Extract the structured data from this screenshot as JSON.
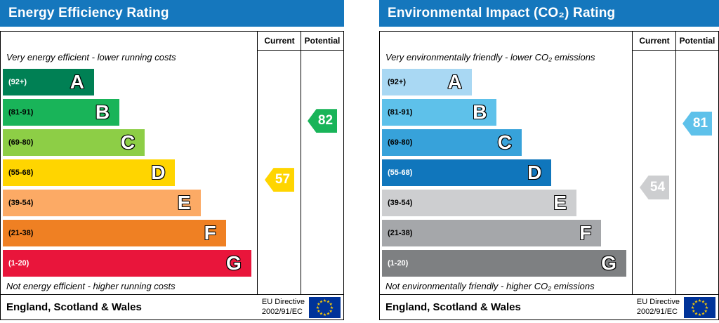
{
  "charts": [
    {
      "title": "Energy Efficiency Rating",
      "columns": {
        "current": "Current",
        "potential": "Potential"
      },
      "top_note": "Very energy efficient - lower running costs",
      "bottom_note": "Not energy efficient - higher running costs",
      "bands": [
        {
          "letter": "A",
          "range": "(92+)",
          "lo": 92,
          "hi": 100,
          "color": "#008054",
          "range_color": "#ffffff",
          "width_pct": 36
        },
        {
          "letter": "B",
          "range": "(81-91)",
          "lo": 81,
          "hi": 91,
          "color": "#19b459",
          "range_color": "#000000",
          "width_pct": 46
        },
        {
          "letter": "C",
          "range": "(69-80)",
          "lo": 69,
          "hi": 80,
          "color": "#8dce46",
          "range_color": "#000000",
          "width_pct": 56
        },
        {
          "letter": "D",
          "range": "(55-68)",
          "lo": 55,
          "hi": 68,
          "color": "#ffd500",
          "range_color": "#000000",
          "width_pct": 68
        },
        {
          "letter": "E",
          "range": "(39-54)",
          "lo": 39,
          "hi": 54,
          "color": "#fcaa65",
          "range_color": "#000000",
          "width_pct": 78
        },
        {
          "letter": "F",
          "range": "(21-38)",
          "lo": 21,
          "hi": 38,
          "color": "#ef8023",
          "range_color": "#000000",
          "width_pct": 88
        },
        {
          "letter": "G",
          "range": "(1-20)",
          "lo": 1,
          "hi": 20,
          "color": "#e9153b",
          "range_color": "#ffffff",
          "width_pct": 98
        }
      ],
      "current": {
        "value": 57,
        "color": "#ffd500"
      },
      "potential": {
        "value": 82,
        "color": "#19b459"
      },
      "footer": {
        "region": "England, Scotland & Wales",
        "directive_line1": "EU Directive",
        "directive_line2": "2002/91/EC",
        "flag_icon": "eu-flag"
      }
    },
    {
      "title": "Environmental Impact (CO₂) Rating",
      "columns": {
        "current": "Current",
        "potential": "Potential"
      },
      "top_note": "Very environmentally friendly - lower CO₂ emissions",
      "bottom_note": "Not environmentally friendly - higher CO₂ emissions",
      "bands": [
        {
          "letter": "A",
          "range": "(92+)",
          "lo": 92,
          "hi": 100,
          "color": "#a9d8f3",
          "range_color": "#000000",
          "width_pct": 36
        },
        {
          "letter": "B",
          "range": "(81-91)",
          "lo": 81,
          "hi": 91,
          "color": "#5ec1ea",
          "range_color": "#000000",
          "width_pct": 46
        },
        {
          "letter": "C",
          "range": "(69-80)",
          "lo": 69,
          "hi": 80,
          "color": "#37a2da",
          "range_color": "#000000",
          "width_pct": 56
        },
        {
          "letter": "D",
          "range": "(55-68)",
          "lo": 55,
          "hi": 68,
          "color": "#1076bc",
          "range_color": "#ffffff",
          "width_pct": 68
        },
        {
          "letter": "E",
          "range": "(39-54)",
          "lo": 39,
          "hi": 54,
          "color": "#cdced0",
          "range_color": "#000000",
          "width_pct": 78
        },
        {
          "letter": "F",
          "range": "(21-38)",
          "lo": 21,
          "hi": 38,
          "color": "#a5a7aa",
          "range_color": "#000000",
          "width_pct": 88
        },
        {
          "letter": "G",
          "range": "(1-20)",
          "lo": 1,
          "hi": 20,
          "color": "#7e8082",
          "range_color": "#ffffff",
          "width_pct": 98
        }
      ],
      "current": {
        "value": 54,
        "color": "#cdced0"
      },
      "potential": {
        "value": 81,
        "color": "#5ec1ea"
      },
      "footer": {
        "region": "England, Scotland & Wales",
        "directive_line1": "EU Directive",
        "directive_line2": "2002/91/EC",
        "flag_icon": "eu-flag"
      }
    }
  ],
  "chart_data": [
    {
      "type": "bar",
      "title": "Energy Efficiency Rating",
      "categories": [
        "A (92+)",
        "B (81-91)",
        "C (69-80)",
        "D (55-68)",
        "E (39-54)",
        "F (21-38)",
        "G (1-20)"
      ],
      "series": [
        {
          "name": "Current",
          "values": [
            57
          ],
          "band": "D"
        },
        {
          "name": "Potential",
          "values": [
            82
          ],
          "band": "B"
        }
      ],
      "scale": [
        1,
        100
      ],
      "top_annotation": "Very energy efficient - lower running costs",
      "bottom_annotation": "Not energy efficient - higher running costs",
      "region": "England, Scotland & Wales",
      "directive": "EU Directive 2002/91/EC"
    },
    {
      "type": "bar",
      "title": "Environmental Impact (CO₂) Rating",
      "categories": [
        "A (92+)",
        "B (81-91)",
        "C (69-80)",
        "D (55-68)",
        "E (39-54)",
        "F (21-38)",
        "G (1-20)"
      ],
      "series": [
        {
          "name": "Current",
          "values": [
            54
          ],
          "band": "E"
        },
        {
          "name": "Potential",
          "values": [
            81
          ],
          "band": "B"
        }
      ],
      "scale": [
        1,
        100
      ],
      "top_annotation": "Very environmentally friendly - lower CO₂ emissions",
      "bottom_annotation": "Not environmentally friendly - higher CO₂ emissions",
      "region": "England, Scotland & Wales",
      "directive": "EU Directive 2002/91/EC"
    }
  ]
}
